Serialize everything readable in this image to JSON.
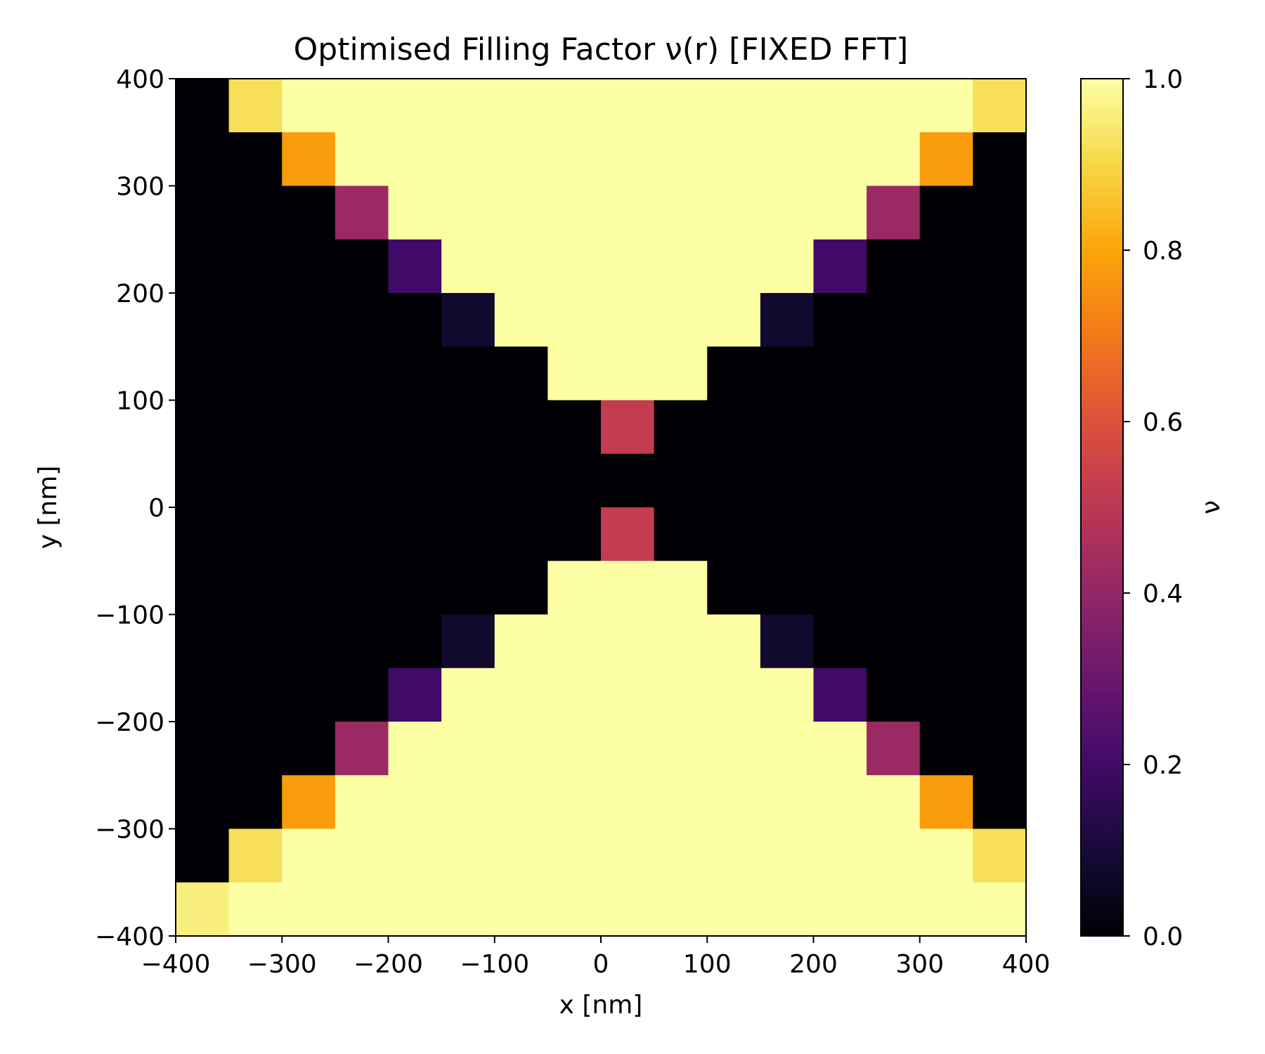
{
  "chart_data": {
    "type": "heatmap",
    "title": "Optimised Filling Factor ν(r) [FIXED FFT]",
    "xlabel": "x [nm]",
    "ylabel": "y [nm]",
    "xlim": [
      -400,
      400
    ],
    "ylim": [
      -400,
      400
    ],
    "cell_size_nm": 50,
    "x_ticks": [
      -400,
      -300,
      -200,
      -100,
      0,
      100,
      200,
      300,
      400
    ],
    "y_ticks": [
      -400,
      -300,
      -200,
      -100,
      0,
      100,
      200,
      300,
      400
    ],
    "colormap": "inferno",
    "colorbar": {
      "label": "ν",
      "range": [
        0.0,
        1.0
      ],
      "ticks": [
        0.0,
        0.2,
        0.4,
        0.6,
        0.8,
        1.0
      ],
      "tick_labels": [
        "0.0",
        "0.2",
        "0.4",
        "0.6",
        "0.8",
        "1.0"
      ]
    },
    "grid": false,
    "rows_top_to_bottom": [
      [
        0,
        0.92,
        1,
        1,
        1,
        1,
        1,
        1,
        1,
        1,
        1,
        1,
        1,
        1,
        1,
        0.92
      ],
      [
        0,
        0,
        0.78,
        1,
        1,
        1,
        1,
        1,
        1,
        1,
        1,
        1,
        1,
        1,
        0.78,
        0
      ],
      [
        0,
        0,
        0,
        0.42,
        1,
        1,
        1,
        1,
        1,
        1,
        1,
        1,
        1,
        0.42,
        0,
        0
      ],
      [
        0,
        0,
        0,
        0,
        0.2,
        1,
        1,
        1,
        1,
        1,
        1,
        1,
        0.2,
        0,
        0,
        0
      ],
      [
        0,
        0,
        0,
        0,
        0,
        0.08,
        1,
        1,
        1,
        1,
        1,
        0.08,
        0,
        0,
        0,
        0
      ],
      [
        0,
        0,
        0,
        0,
        0,
        0,
        0,
        1,
        1,
        1,
        0,
        0,
        0,
        0,
        0,
        0
      ],
      [
        0,
        0,
        0,
        0,
        0,
        0,
        0,
        0,
        0.52,
        0,
        0,
        0,
        0,
        0,
        0,
        0
      ],
      [
        0,
        0,
        0,
        0,
        0,
        0,
        0,
        0,
        0,
        0,
        0,
        0,
        0,
        0,
        0,
        0
      ],
      [
        0,
        0,
        0,
        0,
        0,
        0,
        0,
        0,
        0.52,
        0,
        0,
        0,
        0,
        0,
        0,
        0
      ],
      [
        0,
        0,
        0,
        0,
        0,
        0,
        0,
        1,
        1,
        1,
        0,
        0,
        0,
        0,
        0,
        0
      ],
      [
        0,
        0,
        0,
        0,
        0,
        0.08,
        1,
        1,
        1,
        1,
        1,
        0.08,
        0,
        0,
        0,
        0
      ],
      [
        0,
        0,
        0,
        0,
        0.2,
        1,
        1,
        1,
        1,
        1,
        1,
        1,
        0.2,
        0,
        0,
        0
      ],
      [
        0,
        0,
        0,
        0.42,
        1,
        1,
        1,
        1,
        1,
        1,
        1,
        1,
        1,
        0.42,
        0,
        0
      ],
      [
        0,
        0,
        0.78,
        1,
        1,
        1,
        1,
        1,
        1,
        1,
        1,
        1,
        1,
        1,
        0.78,
        0
      ],
      [
        0,
        0.92,
        1,
        1,
        1,
        1,
        1,
        1,
        1,
        1,
        1,
        1,
        1,
        1,
        1,
        0.92
      ],
      [
        0.96,
        1,
        1,
        1,
        1,
        1,
        1,
        1,
        1,
        1,
        1,
        1,
        1,
        1,
        1,
        1
      ]
    ]
  }
}
